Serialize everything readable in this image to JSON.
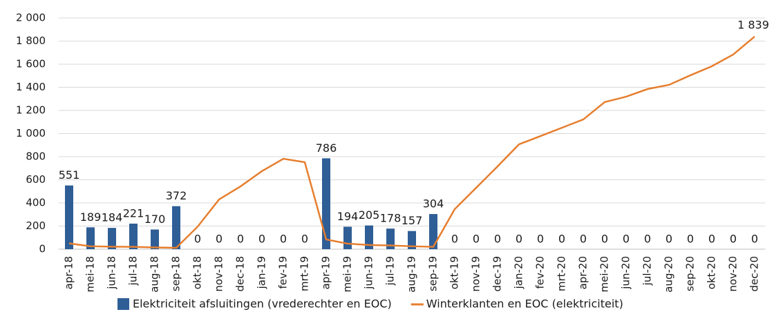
{
  "chart_data": {
    "type": "bar",
    "categories": [
      "apr-18",
      "mei-18",
      "jun-18",
      "jul-18",
      "aug-18",
      "sep-18",
      "okt-18",
      "nov-18",
      "dec-18",
      "jan-19",
      "fev-19",
      "mrt-19",
      "apr-19",
      "mei-19",
      "jun-19",
      "jul-19",
      "aug-19",
      "sep-19",
      "okt-19",
      "nov-19",
      "dec-19",
      "jan-20",
      "fev-20",
      "mrt-20",
      "apr-20",
      "mei-20",
      "jun-20",
      "jul-20",
      "aug-20",
      "sep-20",
      "okt-20",
      "nov-20",
      "dec-20"
    ],
    "series": [
      {
        "name": "Elektriciteit afsluitingen (vrederechter en EOC)",
        "type": "bar",
        "color": "#2f5e96",
        "values": [
          551,
          189,
          184,
          221,
          170,
          372,
          0,
          0,
          0,
          0,
          0,
          0,
          786,
          194,
          205,
          178,
          157,
          304,
          0,
          0,
          0,
          0,
          0,
          0,
          0,
          0,
          0,
          0,
          0,
          0,
          0,
          0,
          0
        ]
      },
      {
        "name": "Winterklanten en EOC (elektriciteit)",
        "type": "line",
        "color": "#e67e2e",
        "values": [
          50,
          25,
          22,
          20,
          15,
          12,
          195,
          430,
          543,
          675,
          782,
          752,
          84,
          48,
          36,
          32,
          25,
          20,
          346,
          531,
          716,
          907,
          978,
          1050,
          1122,
          1272,
          1319,
          1385,
          1421,
          1504,
          1582,
          1684,
          1839
        ],
        "value_labels": [
          null,
          null,
          null,
          null,
          null,
          null,
          null,
          null,
          null,
          null,
          null,
          null,
          null,
          null,
          null,
          null,
          null,
          null,
          null,
          null,
          null,
          null,
          null,
          null,
          null,
          null,
          null,
          null,
          null,
          null,
          null,
          null,
          "1 839"
        ]
      }
    ],
    "ylim": [
      0,
      2000
    ],
    "yticks": [
      0,
      200,
      400,
      600,
      800,
      {
        "value": 1000,
        "label": "1 000"
      },
      {
        "value": 1200,
        "label": "1 200"
      },
      {
        "value": 1400,
        "label": "1 400"
      },
      {
        "value": 1600,
        "label": "1 600"
      },
      {
        "value": 1800,
        "label": "1 800"
      },
      {
        "value": 2000,
        "label": "2 000"
      }
    ],
    "grid": true,
    "legend": "bottom"
  }
}
